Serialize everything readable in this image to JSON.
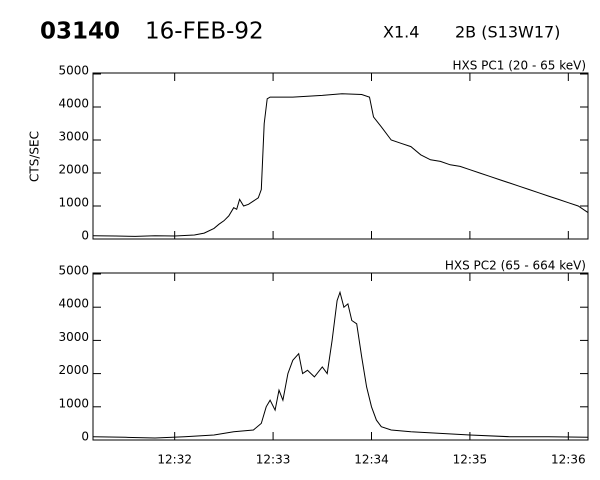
{
  "header": {
    "event": "03140",
    "date": "16-FEB-92",
    "class": "X1.4",
    "flare": "2B (S13W17)"
  },
  "chart_data": [
    {
      "type": "line",
      "title": "HXS PC1 (20 - 65 keV)",
      "y_label": "CTS/SEC",
      "color": "#000000",
      "xlim": [
        31.17,
        36.2
      ],
      "xticks": [
        32,
        33,
        34,
        35,
        36
      ],
      "ylim": [
        0,
        5000
      ],
      "yticks": [
        0,
        1000,
        2000,
        3000,
        4000,
        5000
      ],
      "x": [
        31.17,
        31.4,
        31.6,
        31.8,
        32.0,
        32.2,
        32.3,
        32.4,
        32.45,
        32.5,
        32.55,
        32.6,
        32.63,
        32.66,
        32.7,
        32.75,
        32.8,
        32.85,
        32.88,
        32.91,
        32.94,
        32.97,
        33.2,
        33.5,
        33.7,
        33.9,
        33.98,
        34.02,
        34.1,
        34.2,
        34.3,
        34.4,
        34.5,
        34.6,
        34.7,
        34.8,
        34.9,
        35.0,
        35.1,
        35.2,
        35.3,
        35.4,
        35.5,
        35.6,
        35.7,
        35.8,
        35.9,
        36.0,
        36.1,
        36.2
      ],
      "values": [
        100,
        90,
        80,
        100,
        90,
        120,
        180,
        320,
        450,
        550,
        700,
        950,
        900,
        1200,
        1000,
        1050,
        1150,
        1250,
        1500,
        3500,
        4250,
        4300,
        4300,
        4350,
        4400,
        4380,
        4300,
        3700,
        3400,
        3000,
        2900,
        2800,
        2550,
        2400,
        2350,
        2250,
        2200,
        2100,
        2000,
        1900,
        1800,
        1700,
        1600,
        1500,
        1400,
        1300,
        1200,
        1100,
        1000,
        800
      ]
    },
    {
      "type": "line",
      "title": "HXS PC2 (65 - 664 keV)",
      "color": "#000000",
      "xlim": [
        31.17,
        36.2
      ],
      "xticks": [
        {
          "value": 32,
          "label": "12:32"
        },
        {
          "value": 33,
          "label": "12:33"
        },
        {
          "value": 34,
          "label": "12:34"
        },
        {
          "value": 35,
          "label": "12:35"
        },
        {
          "value": 36,
          "label": "12:36"
        }
      ],
      "ylim": [
        0,
        5000
      ],
      "yticks": [
        0,
        1000,
        2000,
        3000,
        4000,
        5000
      ],
      "x": [
        31.17,
        31.5,
        31.8,
        32.1,
        32.4,
        32.6,
        32.8,
        32.88,
        32.93,
        32.97,
        33.02,
        33.06,
        33.1,
        33.15,
        33.2,
        33.26,
        33.3,
        33.35,
        33.42,
        33.5,
        33.55,
        33.6,
        33.65,
        33.68,
        33.72,
        33.76,
        33.8,
        33.85,
        33.9,
        33.95,
        34.0,
        34.05,
        34.1,
        34.2,
        34.4,
        34.7,
        35.0,
        35.4,
        35.8,
        36.2
      ],
      "values": [
        100,
        80,
        60,
        100,
        150,
        250,
        300,
        500,
        1000,
        1200,
        900,
        1500,
        1200,
        2000,
        2400,
        2600,
        2000,
        2100,
        1900,
        2200,
        2000,
        3000,
        4200,
        4450,
        4000,
        4100,
        3600,
        3500,
        2500,
        1600,
        1000,
        600,
        400,
        300,
        250,
        200,
        150,
        100,
        100,
        80
      ]
    }
  ]
}
